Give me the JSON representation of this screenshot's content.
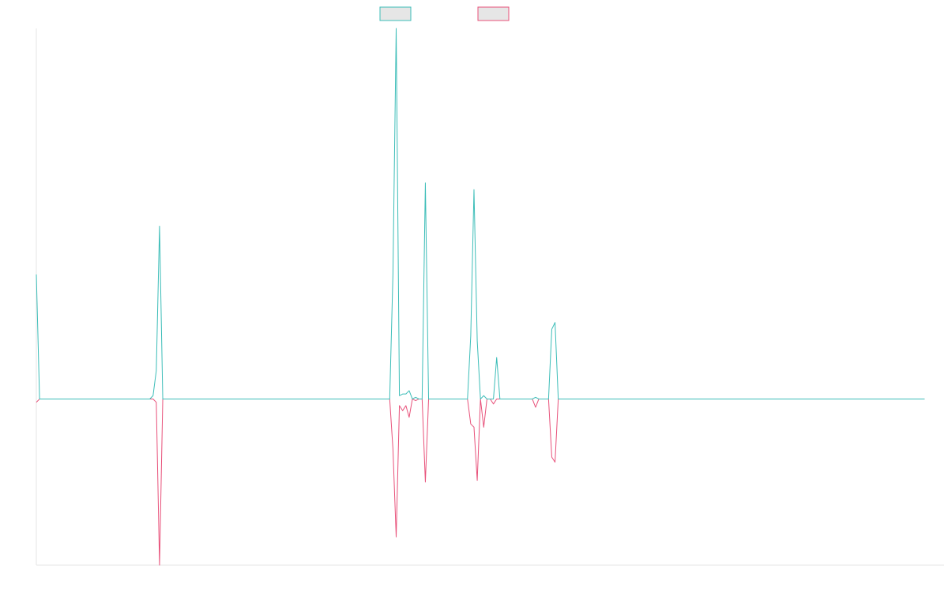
{
  "colors": {
    "series_a": "#3cbdb8",
    "series_b": "#e8517a",
    "legend_fill": "#e6e6e6",
    "axis": "#e5e5e5",
    "background": "#ffffff"
  },
  "chart_data": {
    "type": "line",
    "title": "",
    "xlabel": "",
    "ylabel": "",
    "grid": false,
    "legend_position": "top-center",
    "legend_entries_text_visible": false,
    "x_count": 281,
    "ylim": [
      -1.0,
      2.23
    ],
    "series": [
      {
        "values": [
          0.75,
          0,
          0,
          0,
          0,
          0,
          0,
          0,
          0,
          0,
          0,
          0,
          0,
          0,
          0,
          0,
          0,
          0,
          0,
          0,
          0,
          0,
          0,
          0,
          0,
          0,
          0,
          0,
          0,
          0,
          0,
          0,
          0,
          0,
          0,
          0,
          0.02,
          0.17,
          1.04,
          0,
          0,
          0,
          0,
          0,
          0,
          0,
          0,
          0,
          0,
          0,
          0,
          0,
          0,
          0,
          0,
          0,
          0,
          0,
          0,
          0,
          0,
          0,
          0,
          0,
          0,
          0,
          0,
          0,
          0,
          0,
          0,
          0,
          0,
          0,
          0,
          0,
          0,
          0,
          0,
          0,
          0,
          0,
          0,
          0,
          0,
          0,
          0,
          0,
          0,
          0,
          0,
          0,
          0,
          0,
          0,
          0,
          0,
          0,
          0,
          0,
          0,
          0,
          0,
          0,
          0,
          0,
          0,
          0,
          0,
          0,
          0.75,
          2.23,
          0.02,
          0.03,
          0.03,
          0.05,
          0,
          0.01,
          0,
          0,
          1.3,
          0,
          0,
          0,
          0,
          0,
          0,
          0,
          0,
          0,
          0,
          0,
          0,
          0,
          0.38,
          1.26,
          0.35,
          0,
          0.02,
          0,
          0,
          0,
          0.25,
          0,
          0,
          0,
          0,
          0,
          0,
          0,
          0,
          0,
          0,
          0,
          0.01,
          0,
          0,
          0,
          0,
          0.42,
          0.46,
          0,
          0,
          0,
          0,
          0,
          0,
          0,
          0,
          0,
          0,
          0,
          0,
          0,
          0,
          0,
          0,
          0,
          0,
          0,
          0,
          0,
          0,
          0,
          0,
          0,
          0,
          0,
          0,
          0,
          0,
          0,
          0,
          0,
          0,
          0,
          0,
          0,
          0,
          0,
          0,
          0,
          0,
          0,
          0,
          0,
          0,
          0,
          0,
          0,
          0,
          0,
          0,
          0,
          0,
          0,
          0,
          0,
          0,
          0,
          0,
          0,
          0,
          0,
          0,
          0,
          0,
          0,
          0,
          0,
          0,
          0,
          0,
          0,
          0,
          0,
          0,
          0,
          0,
          0,
          0,
          0,
          0,
          0,
          0,
          0,
          0,
          0,
          0,
          0,
          0,
          0,
          0,
          0,
          0,
          0,
          0,
          0,
          0,
          0,
          0,
          0,
          0,
          0,
          0,
          0,
          0,
          0,
          0,
          0,
          0,
          0,
          0,
          0,
          0
        ]
      },
      {
        "values": [
          -0.02,
          0,
          0,
          0,
          0,
          0,
          0,
          0,
          0,
          0,
          0,
          0,
          0,
          0,
          0,
          0,
          0,
          0,
          0,
          0,
          0,
          0,
          0,
          0,
          0,
          0,
          0,
          0,
          0,
          0,
          0,
          0,
          0,
          0,
          0,
          0,
          0,
          -0.02,
          -1.0,
          0,
          0,
          0,
          0,
          0,
          0,
          0,
          0,
          0,
          0,
          0,
          0,
          0,
          0,
          0,
          0,
          0,
          0,
          0,
          0,
          0,
          0,
          0,
          0,
          0,
          0,
          0,
          0,
          0,
          0,
          0,
          0,
          0,
          0,
          0,
          0,
          0,
          0,
          0,
          0,
          0,
          0,
          0,
          0,
          0,
          0,
          0,
          0,
          0,
          0,
          0,
          0,
          0,
          0,
          0,
          0,
          0,
          0,
          0,
          0,
          0,
          0,
          0,
          0,
          0,
          0,
          0,
          0,
          0,
          0,
          0,
          -0.3,
          -0.83,
          -0.04,
          -0.07,
          -0.04,
          -0.11,
          0,
          -0.01,
          0,
          0,
          -0.5,
          0,
          0,
          0,
          0,
          0,
          0,
          0,
          0,
          0,
          0,
          0,
          0,
          0,
          -0.15,
          -0.17,
          -0.49,
          0,
          -0.17,
          0,
          0,
          -0.03,
          0,
          0,
          0,
          0,
          0,
          0,
          0,
          0,
          0,
          0,
          0,
          0,
          -0.05,
          0,
          0,
          0,
          0,
          -0.35,
          -0.38,
          0,
          0,
          0,
          0,
          0,
          0,
          0,
          0,
          0,
          0,
          0,
          0,
          0,
          0,
          0,
          0,
          0,
          0,
          0,
          0,
          0,
          0,
          0,
          0,
          0,
          0,
          0,
          0,
          0,
          0,
          0,
          0,
          0,
          0,
          0,
          0,
          0,
          0,
          0,
          0,
          0,
          0,
          0,
          0,
          0,
          0,
          0,
          0,
          0,
          0,
          0,
          0,
          0,
          0,
          0,
          0,
          0,
          0,
          0,
          0,
          0,
          0,
          0,
          0,
          0,
          0,
          0,
          0,
          0,
          0,
          0,
          0,
          0,
          0,
          0,
          0,
          0,
          0,
          0,
          0,
          0,
          0,
          0,
          0,
          0,
          0,
          0,
          0,
          0,
          0,
          0,
          0,
          0,
          0,
          0,
          0,
          0,
          0,
          0,
          0,
          0,
          0,
          0,
          0,
          0,
          0,
          0,
          0,
          0,
          0,
          0,
          0,
          0,
          0
        ]
      }
    ]
  }
}
